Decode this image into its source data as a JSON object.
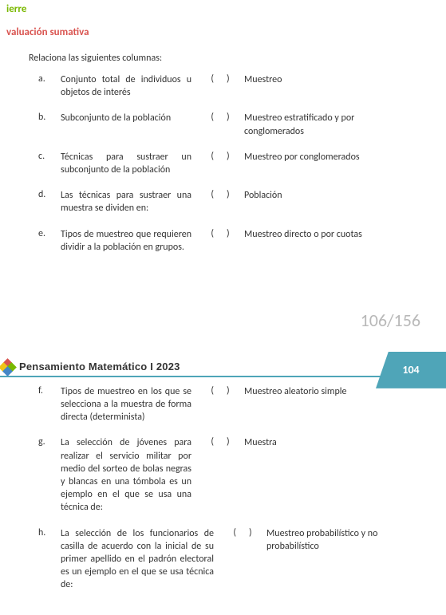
{
  "header_truncated": "ierre",
  "section_title": "valuación sumativa",
  "instruction": "Relaciona las siguientes columnas:",
  "rows_top": [
    {
      "letter": "a.",
      "left": "Conjunto total de individuos u objetos de interés",
      "right": "Muestreo"
    },
    {
      "letter": "b.",
      "left": "Subconjunto de la población",
      "right": "Muestreo estratificado y por conglomerados"
    },
    {
      "letter": "c.",
      "left": "Técnicas para sustraer un subconjunto de la población",
      "right": "Muestreo por conglomerados"
    },
    {
      "letter": "d.",
      "left": "Las técnicas para sustraer una muestra se dividen en:",
      "right": "Población"
    },
    {
      "letter": "e.",
      "left": "Tipos de muestreo que requieren dividir a la población en grupos.",
      "right": "Muestreo directo o por cuotas"
    }
  ],
  "page_counter": "106/156",
  "page_tab": "104",
  "book_title": "Pensamiento Matemático I 2023",
  "rows_bottom": [
    {
      "letter": "f.",
      "left": "Tipos de muestreo en los que se selecciona a la muestra de forma directa (determinista)",
      "right": "Muestreo aleatorio simple"
    },
    {
      "letter": "g.",
      "left": "La selección de jóvenes para realizar el servicio militar por medio del sorteo de bolas negras y blancas en una tómbola es un ejemplo en el que se usa una técnica de:",
      "right": "Muestra"
    },
    {
      "letter": "h.",
      "left": "La selección de los funcionarios de casilla de acuerdo con la inicial de su primer apellido en el padrón electoral es un ejemplo en el que se usa técnica de:",
      "right": "Muestreo probabilístico y no probabilístico"
    }
  ],
  "paren_open": "(",
  "paren_close": ")"
}
